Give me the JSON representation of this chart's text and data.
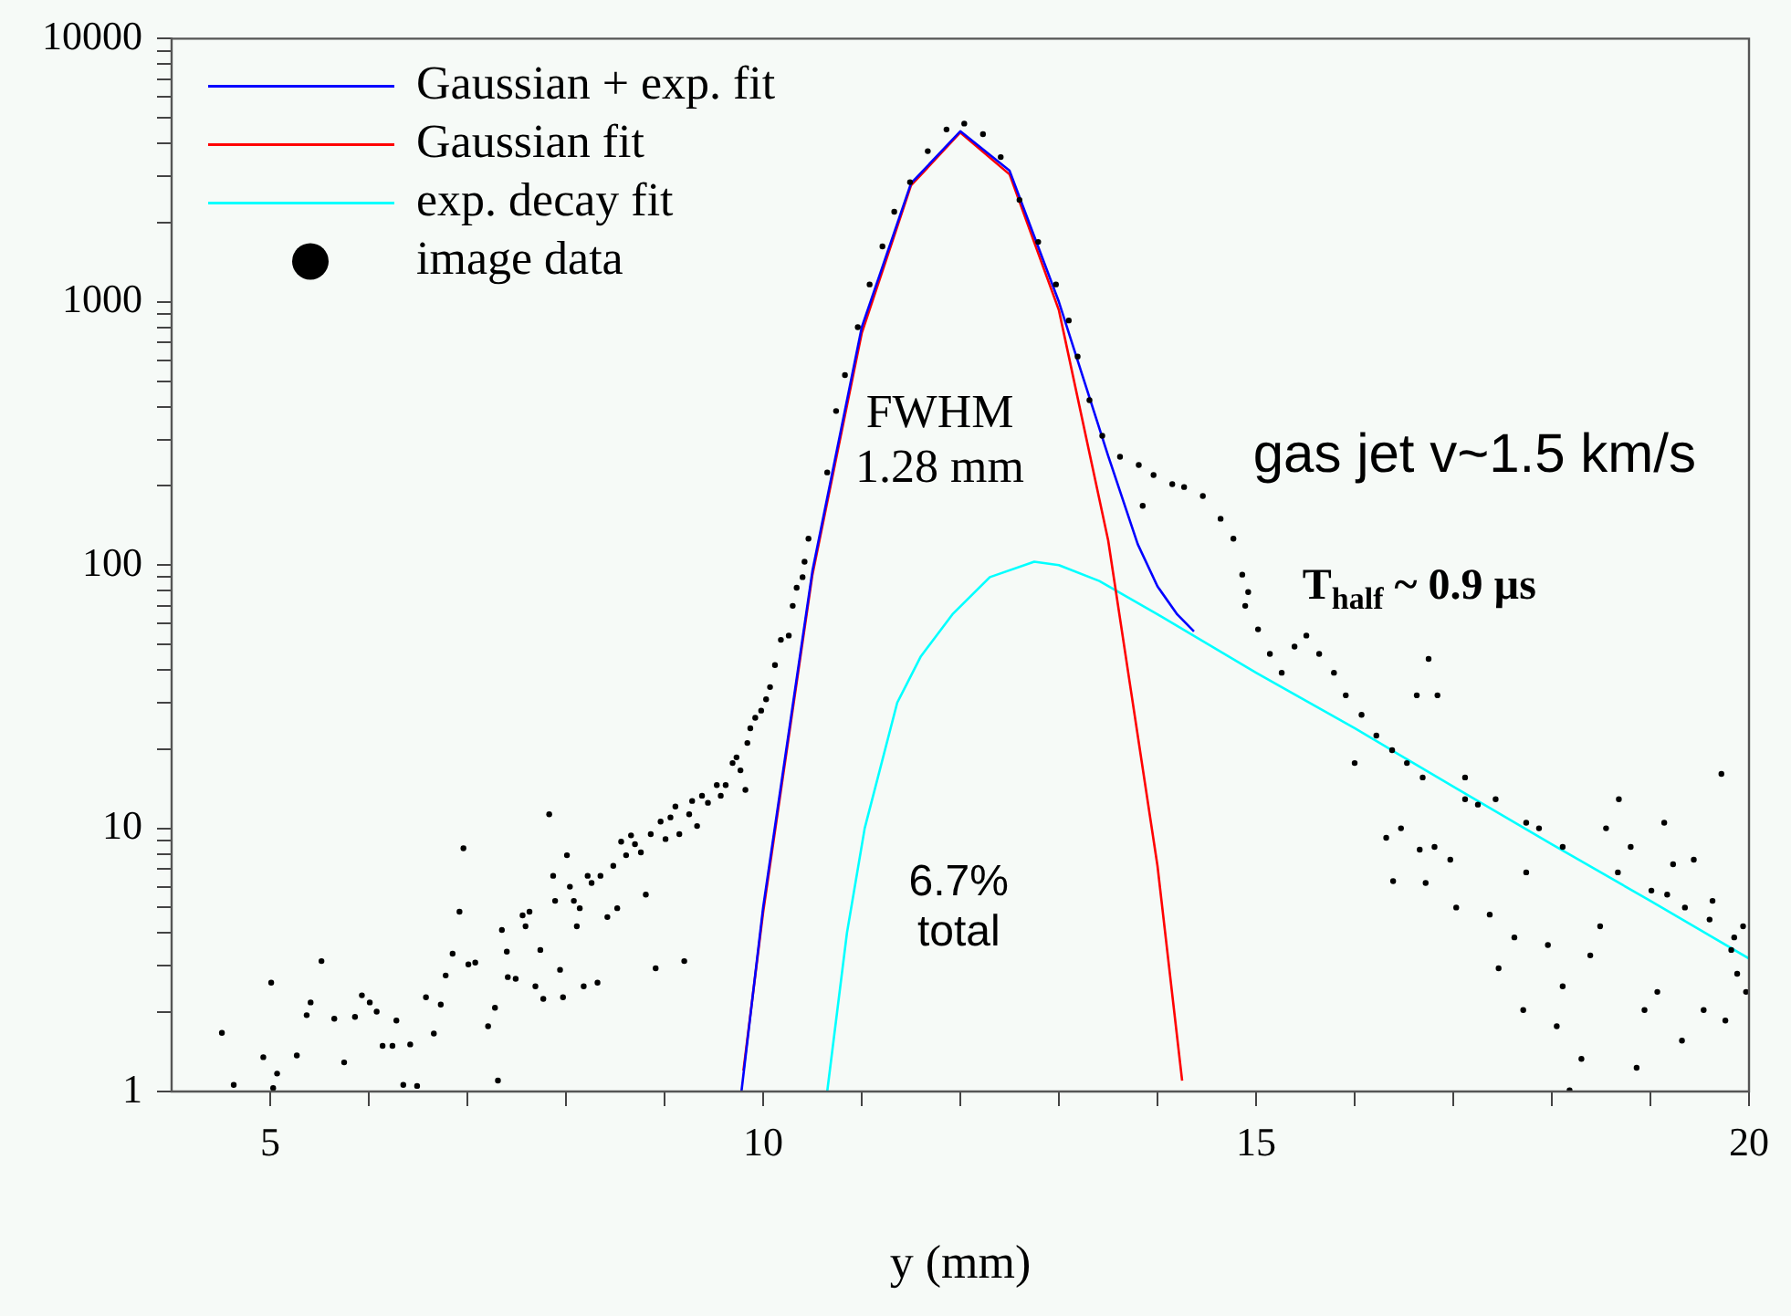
{
  "chart_data": {
    "type": "scatter",
    "xlabel": "y (mm)",
    "xlim": [
      4,
      20
    ],
    "xticks": [
      5,
      {
        "value": 6,
        "label": null
      },
      {
        "value": 7,
        "label": null
      },
      {
        "value": 8,
        "label": null
      },
      {
        "value": 9,
        "label": null
      },
      10,
      {
        "value": 11,
        "label": null
      },
      {
        "value": 12,
        "label": null
      },
      {
        "value": 13,
        "label": null
      },
      {
        "value": 14,
        "label": null
      },
      15,
      {
        "value": 16,
        "label": null
      },
      {
        "value": 17,
        "label": null
      },
      {
        "value": 18,
        "label": null
      },
      {
        "value": 19,
        "label": null
      },
      20
    ],
    "ylim": [
      1,
      10000
    ],
    "log": "y",
    "yticks": [
      1,
      {
        "value": 2,
        "label": null
      },
      {
        "value": 3,
        "label": null
      },
      {
        "value": 4,
        "label": null
      },
      {
        "value": 5,
        "label": null
      },
      {
        "value": 6,
        "label": null
      },
      {
        "value": 7,
        "label": null
      },
      {
        "value": 8,
        "label": null
      },
      {
        "value": 9,
        "label": null
      },
      10,
      {
        "value": 20,
        "label": null
      },
      {
        "value": 30,
        "label": null
      },
      {
        "value": 40,
        "label": null
      },
      {
        "value": 50,
        "label": null
      },
      {
        "value": 60,
        "label": null
      },
      {
        "value": 70,
        "label": null
      },
      {
        "value": 80,
        "label": null
      },
      {
        "value": 90,
        "label": null
      },
      100,
      {
        "value": 200,
        "label": null
      },
      {
        "value": 300,
        "label": null
      },
      {
        "value": 400,
        "label": null
      },
      {
        "value": 500,
        "label": null
      },
      {
        "value": 600,
        "label": null
      },
      {
        "value": 700,
        "label": null
      },
      {
        "value": 800,
        "label": null
      },
      {
        "value": 900,
        "label": null
      },
      1000,
      {
        "value": 2000,
        "label": null
      },
      {
        "value": 3000,
        "label": null
      },
      {
        "value": 4000,
        "label": null
      },
      {
        "value": 5000,
        "label": null
      },
      {
        "value": 6000,
        "label": null
      },
      {
        "value": 7000,
        "label": null
      },
      {
        "value": 8000,
        "label": null
      },
      {
        "value": 9000,
        "label": null
      },
      10000
    ],
    "grid": false,
    "legend": "top left",
    "series": [
      {
        "name": "Gaussian + exp. fit",
        "type": "line",
        "color": "#0000ff",
        "line_style": "solid",
        "marker": "none",
        "x": [
          9.78,
          10,
          10.5,
          11,
          11.5,
          12,
          12.5,
          13,
          13.5,
          13.8,
          14,
          14.2,
          14.37
        ],
        "values": [
          1,
          5,
          95,
          800,
          2820,
          4450,
          3150,
          1000,
          260,
          120,
          83,
          65,
          56
        ]
      },
      {
        "name": "Gaussian fit",
        "type": "line",
        "color": "#ff0000",
        "line_style": "solid",
        "marker": "none",
        "x": [
          9.8,
          10,
          10.5,
          11,
          11.5,
          12,
          12.5,
          13,
          13.5,
          14,
          14.25
        ],
        "values": [
          1.2,
          4.8,
          92,
          760,
          2770,
          4400,
          3050,
          930,
          124,
          7.2,
          1.1
        ]
      },
      {
        "name": "exp. decay fit",
        "type": "line",
        "color": "#00ffff",
        "line_style": "solid",
        "marker": "none",
        "x": [
          10.65,
          10.75,
          10.85,
          11.03,
          11.36,
          11.6,
          11.92,
          12.3,
          12.75,
          13,
          13.41,
          14,
          15,
          16,
          17,
          18,
          19,
          20
        ],
        "values": [
          1,
          2,
          4,
          10,
          30,
          45,
          65,
          90,
          103,
          100,
          87,
          65,
          39,
          24,
          14.4,
          8.7,
          5.3,
          3.2
        ]
      },
      {
        "name": "image data",
        "color": "#000000",
        "marker": "circle",
        "x": [
          4.51,
          4.63,
          4.93,
          5.01,
          5.03,
          5.07,
          5.27,
          5.37,
          5.41,
          5.52,
          5.65,
          5.75,
          5.86,
          5.93,
          6.01,
          6.08,
          6.14,
          6.24,
          6.28,
          6.35,
          6.42,
          6.49,
          6.58,
          6.66,
          6.73,
          6.78,
          6.85,
          6.92,
          6.96,
          7.01,
          7.08,
          7.21,
          7.28,
          7.31,
          7.35,
          7.4,
          7.41,
          7.49,
          7.56,
          7.59,
          7.63,
          7.69,
          7.74,
          7.77,
          7.83,
          7.87,
          7.89,
          7.94,
          7.97,
          8.01,
          8.04,
          8.08,
          8.11,
          8.14,
          8.18,
          8.22,
          8.26,
          8.32,
          8.35,
          8.42,
          8.48,
          8.52,
          8.56,
          8.61,
          8.66,
          8.7,
          8.76,
          8.81,
          8.86,
          8.91,
          8.96,
          9.01,
          9.06,
          9.11,
          9.15,
          9.2,
          9.25,
          9.28,
          9.33,
          9.38,
          9.44,
          9.53,
          9.57,
          9.62,
          9.69,
          9.73,
          9.77,
          9.82,
          9.84,
          9.87,
          9.92,
          9.98,
          10.03,
          10.07,
          10.12,
          10.18,
          10.26,
          10.3,
          10.34,
          10.4,
          10.42,
          10.46,
          10.65,
          10.74,
          10.83,
          10.96,
          11.08,
          11.21,
          11.33,
          11.49,
          11.67,
          11.86,
          12.04,
          12.23,
          12.41,
          12.6,
          12.79,
          12.97,
          13.1,
          13.19,
          13.31,
          13.44,
          13.62,
          13.81,
          13.85,
          13.96,
          14.15,
          14.27,
          14.46,
          14.64,
          14.77,
          14.86,
          14.89,
          14.92,
          15.02,
          15.14,
          15.26,
          15.39,
          15.51,
          15.64,
          15.79,
          15.91,
          16.0,
          16.07,
          16.22,
          16.32,
          16.38,
          16.39,
          16.47,
          16.53,
          16.63,
          16.66,
          16.69,
          16.72,
          16.75,
          16.81,
          16.84,
          16.97,
          17.03,
          17.12,
          17.12,
          17.25,
          17.37,
          17.43,
          17.46,
          17.62,
          17.71,
          17.74,
          17.74,
          17.87,
          17.96,
          18.05,
          18.11,
          18.11,
          18.18,
          18.3,
          18.39,
          18.49,
          18.55,
          18.67,
          18.68,
          18.8,
          18.86,
          18.94,
          19.01,
          19.07,
          19.14,
          19.17,
          19.23,
          19.32,
          19.35,
          19.44,
          19.54,
          19.6,
          19.63,
          19.72,
          19.76,
          19.82,
          19.85,
          19.88,
          19.94,
          19.97
        ],
        "values": [
          1.67,
          1.06,
          1.35,
          2.59,
          1.03,
          1.17,
          1.37,
          1.95,
          2.18,
          3.13,
          1.89,
          1.29,
          1.92,
          2.32,
          2.18,
          2.01,
          1.49,
          1.49,
          1.86,
          1.06,
          1.51,
          1.05,
          2.28,
          1.66,
          2.14,
          2.76,
          3.34,
          4.82,
          8.4,
          3.04,
          3.09,
          1.77,
          2.08,
          1.1,
          4.11,
          3.4,
          2.72,
          2.68,
          4.67,
          4.24,
          4.82,
          2.51,
          3.45,
          2.25,
          11.3,
          6.6,
          5.3,
          2.9,
          2.28,
          7.9,
          6,
          5.3,
          4.24,
          4.97,
          2.51,
          6.6,
          6.2,
          2.59,
          6.6,
          4.6,
          7.2,
          4.97,
          8.9,
          7.9,
          9.4,
          8.7,
          8.1,
          5.6,
          9.5,
          2.94,
          10.6,
          9.1,
          11,
          12.1,
          9.5,
          3.13,
          11.3,
          12.7,
          10.2,
          13.3,
          12.5,
          14.6,
          13.3,
          14.6,
          17.7,
          18.6,
          16.6,
          14,
          21.1,
          24,
          26.3,
          28,
          30.9,
          34.4,
          41.7,
          52,
          54,
          70,
          82,
          90,
          103,
          126,
          225,
          385,
          527,
          802,
          1165,
          1625,
          2200,
          2850,
          3740,
          4520,
          4760,
          4340,
          3550,
          2440,
          1690,
          1165,
          850,
          620,
          423,
          310,
          258,
          240,
          168,
          220,
          203,
          198,
          183,
          150,
          126,
          92,
          70,
          79,
          57,
          46,
          39,
          49,
          54,
          46,
          39,
          32,
          17.7,
          27,
          22.5,
          9.2,
          19.8,
          6.3,
          10,
          17.7,
          32,
          8.3,
          15.6,
          6.2,
          44,
          8.5,
          32,
          7.6,
          5,
          12.9,
          15.6,
          12.3,
          4.7,
          12.9,
          2.94,
          3.85,
          2.04,
          6.8,
          10.5,
          10,
          3.6,
          1.77,
          2.51,
          8.5,
          1.01,
          1.33,
          3.29,
          4.24,
          10,
          6.8,
          12.9,
          8.5,
          1.23,
          2.04,
          5.8,
          2.39,
          10.5,
          5.6,
          7.3,
          1.56,
          5,
          7.6,
          2.04,
          4.5,
          5.3,
          16.1,
          1.86,
          3.45,
          3.85,
          2.8,
          4.24,
          2.39
        ]
      }
    ],
    "annotations": [
      "FWHM\n1.28 mm",
      "gas jet v~1.5 km/s",
      "T$_{half}$ ~ 0.9 µs",
      "6.7%\ntotal"
    ]
  }
}
